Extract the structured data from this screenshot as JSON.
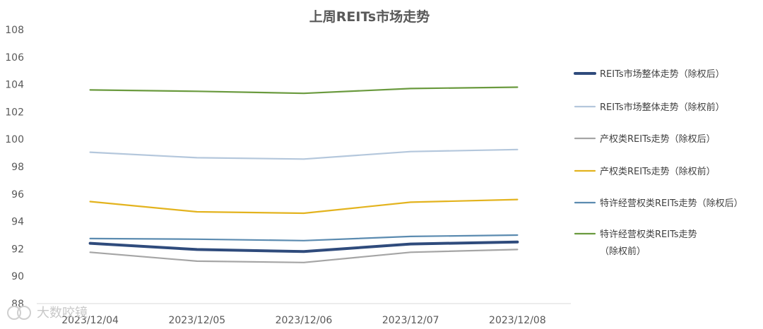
{
  "chart_data": {
    "type": "line",
    "title": "上周REITs市场走势",
    "xlabel": "",
    "ylabel": "",
    "categories": [
      "2023/12/04",
      "2023/12/05",
      "2023/12/06",
      "2023/12/07",
      "2023/12/08"
    ],
    "ylim": [
      88,
      108
    ],
    "yticks": [
      "88",
      "90",
      "92",
      "94",
      "96",
      "98",
      "100",
      "102",
      "104",
      "106",
      "108"
    ],
    "grid": false,
    "legend_position": "right",
    "series": [
      {
        "name": "REITs市场整体走势（除权后）",
        "color": "#2f4b7c",
        "bold": true,
        "values": [
          92.4,
          91.95,
          91.8,
          92.35,
          92.5
        ]
      },
      {
        "name": "REITs市场整体走势（除权前）",
        "color": "#b4c7dc",
        "bold": false,
        "values": [
          99.05,
          98.65,
          98.55,
          99.1,
          99.25
        ]
      },
      {
        "name": "产权类REITs走势（除权后）",
        "color": "#a5a5a5",
        "bold": false,
        "values": [
          91.75,
          91.1,
          91.0,
          91.75,
          91.95
        ]
      },
      {
        "name": "产权类REITs走势（除权前）",
        "color": "#e3b31e",
        "bold": false,
        "values": [
          95.45,
          94.7,
          94.6,
          95.4,
          95.6
        ]
      },
      {
        "name": "特许经营权类REITs走势（除权后）",
        "color": "#5b8bb0",
        "bold": false,
        "values": [
          92.75,
          92.7,
          92.6,
          92.9,
          93.0
        ]
      },
      {
        "name": "特许经营权类REITs走势",
        "name_line2": "（除权前）",
        "color": "#6a9a3e",
        "bold": false,
        "values": [
          103.6,
          103.5,
          103.35,
          103.7,
          103.8
        ]
      }
    ]
  },
  "watermark": "大数咬镜"
}
